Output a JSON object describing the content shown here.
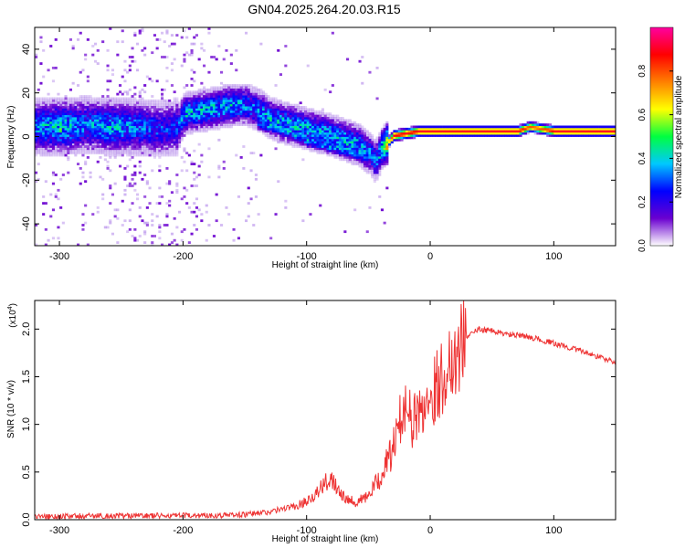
{
  "title": "GN04.2025.264.20.03.R15",
  "chart_data": [
    {
      "type": "heatmap",
      "name": "spectrogram",
      "xlabel": "Height of straight line (km)",
      "ylabel": "Frequency (Hz)",
      "xlim": [
        -320,
        150
      ],
      "ylim": [
        -50,
        50
      ],
      "xticks": [
        -300,
        -200,
        -100,
        0,
        100
      ],
      "yticks": [
        -40,
        -20,
        0,
        20,
        40
      ],
      "colorbar": {
        "label": "Normalized spectral amplitude",
        "range": [
          0,
          1
        ],
        "ticks": [
          0.0,
          0.2,
          0.4,
          0.6,
          0.8
        ],
        "tick_labels": [
          "0.0",
          "0.2",
          "0.4",
          "0.6",
          "0.8"
        ],
        "colors": [
          "#ffffff",
          "#6a00d0",
          "#0000ff",
          "#00c8ff",
          "#00ff40",
          "#ffff00",
          "#ff8000",
          "#ff0000",
          "#ff00a0"
        ]
      },
      "ridge": {
        "x": [
          -320,
          -300,
          -280,
          -260,
          -240,
          -220,
          -205,
          -200,
          -180,
          -160,
          -150,
          -140,
          -130,
          -120,
          -100,
          -80,
          -60,
          -50,
          -45,
          -40,
          -30,
          -20,
          -10,
          0,
          20,
          50,
          70,
          80,
          90,
          100,
          120,
          150
        ],
        "freq": [
          4,
          4,
          5,
          4,
          4,
          3,
          4,
          10,
          12,
          14,
          14,
          12,
          8,
          6,
          3,
          0,
          -4,
          -8,
          -12,
          -6,
          0,
          1,
          2,
          2,
          2,
          2,
          2,
          4,
          3,
          2,
          2,
          2
        ],
        "amplitude": [
          0.3,
          0.4,
          0.3,
          0.35,
          0.3,
          0.25,
          0.25,
          0.35,
          0.35,
          0.35,
          0.3,
          0.3,
          0.35,
          0.35,
          0.35,
          0.35,
          0.35,
          0.3,
          0.3,
          0.4,
          0.9,
          0.9,
          0.9,
          0.9,
          0.9,
          0.9,
          0.9,
          0.8,
          0.8,
          0.9,
          0.9,
          0.9
        ]
      },
      "secondary_branch": {
        "x": [
          -140,
          -120,
          -100,
          -80,
          -60,
          -45
        ],
        "freq": [
          6,
          3,
          -2,
          -5,
          -8,
          -10
        ]
      }
    },
    {
      "type": "line",
      "name": "snr",
      "xlabel": "Height of straight line (km)",
      "ylabel": "SNR (10 * v/v)",
      "multiplier_label": "(x10",
      "multiplier_exp": "4",
      "xlim": [
        -320,
        150
      ],
      "ylim": [
        0,
        2.3
      ],
      "xticks": [
        -300,
        -200,
        -100,
        0,
        100
      ],
      "yticks": [
        0.0,
        0.5,
        1.0,
        1.5,
        2.0
      ],
      "ytick_labels": [
        "0.0",
        "0.5",
        "1.0",
        "1.5",
        "2.0"
      ],
      "color": "#ee3333",
      "series": {
        "x": [
          -320,
          -250,
          -200,
          -150,
          -130,
          -110,
          -100,
          -90,
          -80,
          -75,
          -70,
          -60,
          -50,
          -40,
          -30,
          -25,
          -20,
          -15,
          -10,
          0,
          10,
          20,
          30,
          40,
          50,
          60,
          80,
          100,
          120,
          150
        ],
        "value": [
          0.02,
          0.03,
          0.03,
          0.04,
          0.07,
          0.13,
          0.2,
          0.3,
          0.45,
          0.35,
          0.25,
          0.18,
          0.25,
          0.45,
          0.75,
          1.0,
          1.3,
          1.0,
          1.1,
          1.3,
          1.5,
          1.75,
          1.93,
          2.0,
          1.98,
          1.95,
          1.92,
          1.85,
          1.78,
          1.65
        ]
      }
    }
  ]
}
